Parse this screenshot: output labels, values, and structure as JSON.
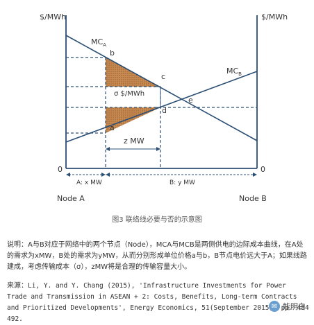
{
  "diagram": {
    "y_axis_left_label": "$/MWh",
    "y_axis_right_label": "$/MWh",
    "curve_a_label": "MC",
    "curve_a_sub": "A",
    "curve_b_label": "MC",
    "curve_b_sub": "B",
    "point_b": "b",
    "point_c": "c",
    "point_d": "d",
    "point_a": "a",
    "point_e": "e",
    "sigma_label": "σ $/MWh",
    "z_label": "z MW",
    "origin_left": "0",
    "origin_right": "0",
    "node_a_demand": "A: x MW",
    "node_b_demand": "B: y MW",
    "node_a": "Node A",
    "node_b": "Node B",
    "shade_color": "#c98a52",
    "line_color": "#2b4f74"
  },
  "caption": "图3 联络线必要与否的示意图",
  "explanation": "说明：A与B对应于网络中的两个节点（Node），MCA与MCB是两侧供电的边际成本曲线，在A处的需求为xMW，B处的需求为yMW，从而分别形成单位价格a与b，B节点电价远大于A；如果线路建成，考虑传输成本（σ），zMW将是合理的传输容量大小。",
  "source": {
    "prefix": "来源：",
    "text": "Li, Y. and Y. Chang (2015), 'Infrastructure Investments for Power Trade and Transmission in ASEAN + 2: Costs, Benefits, Long-term Contracts and Prioritized Developments', Energy Economics, 51(September 2015), pp. 484  492."
  },
  "watermark": {
    "text": "能明白",
    "icon": "wechat-icon"
  }
}
